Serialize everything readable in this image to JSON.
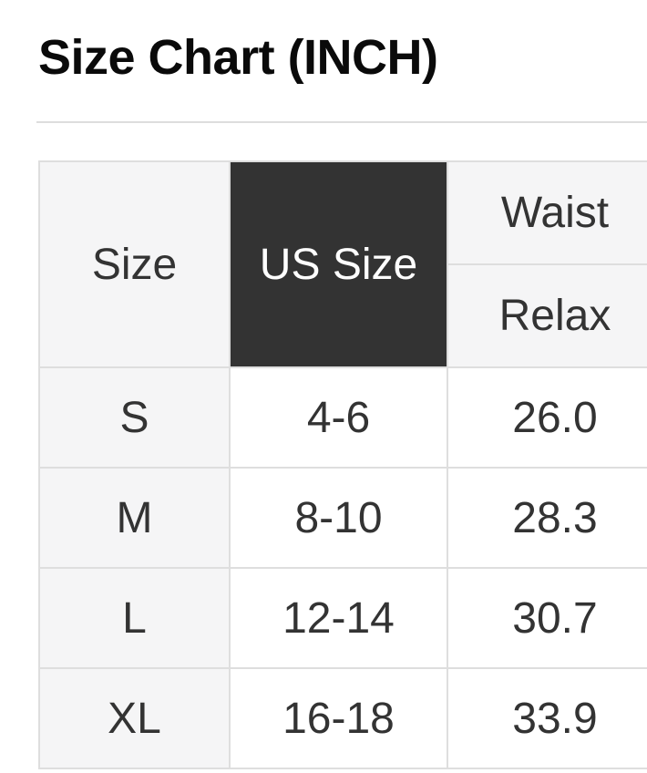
{
  "page": {
    "title": "Size Chart (INCH)"
  },
  "table": {
    "columns": {
      "size_label": "Size",
      "us_size_label": "US Size",
      "waist_label": "Waist",
      "waist_sub_label": "Relax"
    },
    "rows": [
      {
        "size": "S",
        "us_size": "4-6",
        "waist_relax": "26.0"
      },
      {
        "size": "M",
        "us_size": "8-10",
        "waist_relax": "28.3"
      },
      {
        "size": "L",
        "us_size": "12-14",
        "waist_relax": "30.7"
      },
      {
        "size": "XL",
        "us_size": "16-18",
        "waist_relax": "33.9"
      }
    ]
  },
  "colors": {
    "header_dark_bg": "#333333",
    "header_light_bg": "#f5f5f6",
    "cell_bg": "#ffffff",
    "border": "#dedede",
    "divider": "#dddddd",
    "text": "#333333",
    "title_text": "#0a0a0a"
  }
}
